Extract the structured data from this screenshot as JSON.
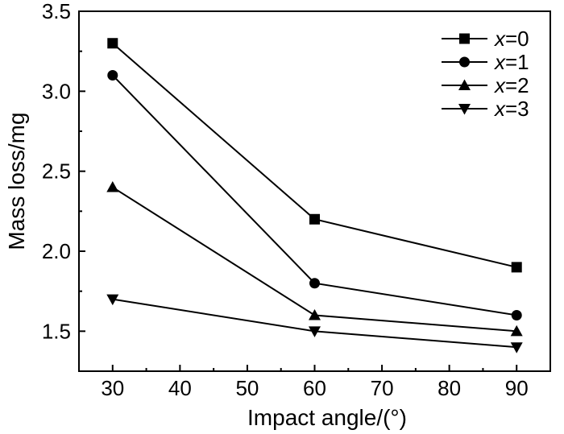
{
  "chart_data": {
    "type": "line",
    "title": "",
    "xlabel": "Impact angle/(°)",
    "ylabel": "Mass loss/mg",
    "xlim": [
      25,
      95
    ],
    "ylim": [
      1.25,
      3.5
    ],
    "xticks": [
      30,
      40,
      50,
      60,
      70,
      80,
      90
    ],
    "yticks": [
      1.5,
      2.0,
      2.5,
      3.0,
      3.5
    ],
    "xtick_labels": [
      "30",
      "40",
      "50",
      "60",
      "70",
      "80",
      "90"
    ],
    "ytick_labels": [
      "1.5",
      "2.0",
      "2.5",
      "3.0",
      "3.5"
    ],
    "x": [
      30,
      60,
      90
    ],
    "legend_position": "top-right",
    "series": [
      {
        "name": "x=0",
        "var": "x",
        "eq": "=0",
        "marker": "square",
        "values": [
          3.3,
          2.2,
          1.9
        ]
      },
      {
        "name": "x=1",
        "var": "x",
        "eq": "=1",
        "marker": "circle",
        "values": [
          3.1,
          1.8,
          1.6
        ]
      },
      {
        "name": "x=2",
        "var": "x",
        "eq": "=2",
        "marker": "triangle-up",
        "values": [
          2.4,
          1.6,
          1.5
        ]
      },
      {
        "name": "x=3",
        "var": "x",
        "eq": "=3",
        "marker": "triangle-down",
        "values": [
          1.7,
          1.5,
          1.4
        ]
      }
    ],
    "colors": {
      "line": "#000000",
      "marker": "#000000",
      "background": "#ffffff"
    }
  }
}
